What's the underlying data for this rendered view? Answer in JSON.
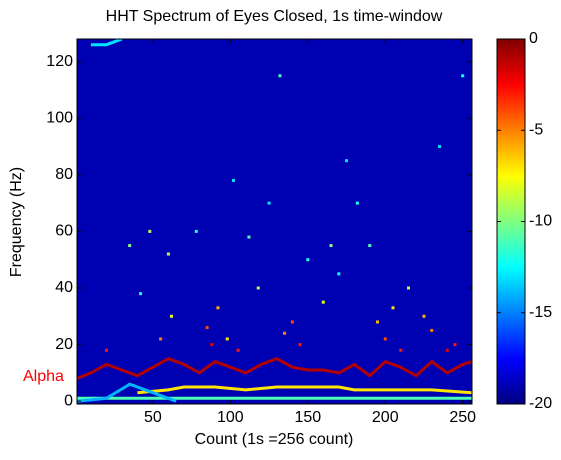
{
  "chart_data": {
    "type": "heatmap",
    "title": "HHT Spectrum of Eyes Closed, 1s time-window",
    "xlabel": "Count (1s =256 count)",
    "ylabel": "Frequency (Hz)",
    "annotation": "Alpha",
    "xlim": [
      1,
      256
    ],
    "ylim": [
      -1,
      128
    ],
    "xticks": [
      50,
      100,
      150,
      200,
      250
    ],
    "yticks": [
      0,
      20,
      40,
      60,
      80,
      100,
      120
    ],
    "clim": [
      -20,
      0
    ],
    "cticks": [
      -20,
      -15,
      -10,
      -5,
      0
    ],
    "colormap": "jet",
    "background": -19,
    "series": [
      {
        "x": [
          1,
          10,
          20,
          30,
          40,
          50,
          60,
          70,
          80,
          90,
          100,
          110,
          120,
          130,
          140,
          150,
          160,
          170,
          180,
          190,
          200,
          210,
          220,
          230,
          240,
          250,
          256
        ],
        "y": [
          8,
          10,
          13,
          11,
          9,
          12,
          15,
          13,
          10,
          14,
          12,
          10,
          13,
          15,
          12,
          11,
          11,
          10,
          13,
          9,
          14,
          12,
          9,
          14,
          10,
          13,
          14
        ],
        "level": -1
      },
      {
        "x": [
          40,
          60,
          70,
          90,
          110,
          130,
          150,
          170,
          180,
          200,
          230,
          256
        ],
        "y": [
          3,
          4,
          5,
          5,
          4,
          5,
          5,
          5,
          4,
          4,
          4,
          3
        ],
        "level": -7
      },
      {
        "x": [
          1,
          20,
          40,
          60,
          100,
          150,
          200,
          256
        ],
        "y": [
          1,
          1,
          1,
          1,
          1,
          1,
          1,
          1
        ],
        "level": -11
      },
      {
        "x": [
          1,
          20,
          35,
          50,
          65
        ],
        "y": [
          0,
          1,
          6,
          3,
          0
        ],
        "level": -14
      },
      {
        "x": [
          10,
          20,
          30
        ],
        "y": [
          126,
          126,
          128
        ],
        "level": -13
      }
    ],
    "points": {
      "x": [
        20,
        35,
        42,
        48,
        55,
        62,
        78,
        85,
        88,
        92,
        98,
        105,
        112,
        118,
        125,
        135,
        140,
        145,
        150,
        160,
        165,
        170,
        175,
        190,
        195,
        200,
        205,
        210,
        215,
        225,
        230,
        240,
        245,
        250,
        235,
        132,
        182,
        60,
        102
      ],
      "y": [
        18,
        55,
        38,
        60,
        22,
        30,
        60,
        26,
        20,
        33,
        22,
        18,
        58,
        40,
        70,
        24,
        28,
        20,
        50,
        35,
        55,
        45,
        85,
        55,
        28,
        22,
        33,
        18,
        40,
        30,
        25,
        18,
        20,
        115,
        90,
        115,
        70,
        52,
        78
      ],
      "values": [
        -3,
        -10,
        -12,
        -9,
        -5,
        -8,
        -12,
        -4,
        -2,
        -6,
        -7,
        -3,
        -11,
        -9,
        -13,
        -5,
        -4,
        -3,
        -12,
        -8,
        -10,
        -12,
        -13,
        -11,
        -6,
        -4,
        -7,
        -3,
        -9,
        -6,
        -5,
        -2,
        -3,
        -12,
        -13,
        -11,
        -12,
        -9,
        -13
      ]
    }
  }
}
